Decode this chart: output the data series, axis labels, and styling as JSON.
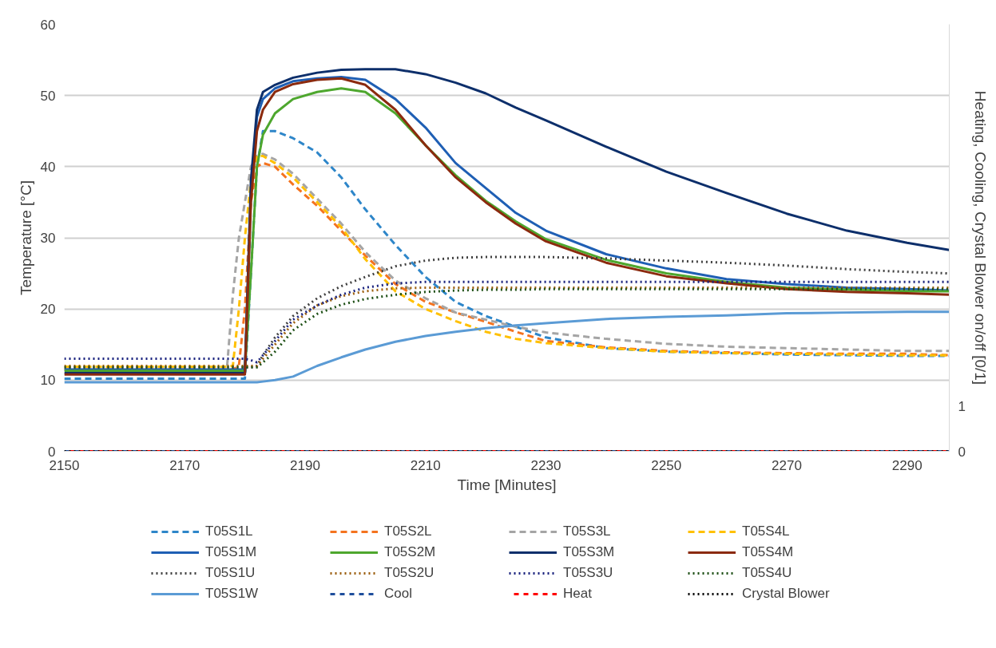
{
  "chart_data": {
    "type": "line",
    "xlabel": "Time [Minutes]",
    "ylabel": "Temperature [°C]",
    "y2label": "Heating, Cooling, Crystal Blower on/off [0/1]",
    "xlim": [
      2150,
      2297
    ],
    "xticks": [
      2150,
      2170,
      2190,
      2210,
      2230,
      2250,
      2270,
      2290
    ],
    "ylim": [
      0,
      60
    ],
    "yticks": [
      0,
      10,
      20,
      30,
      40,
      50,
      60
    ],
    "y2lim": [
      0,
      9.55
    ],
    "y2ticks": [
      0,
      1
    ],
    "grid": "y",
    "legend": "bottom",
    "x": [
      2150,
      2180,
      2181,
      2182,
      2183,
      2185,
      2188,
      2192,
      2196,
      2200,
      2205,
      2210,
      2215,
      2220,
      2225,
      2230,
      2240,
      2250,
      2260,
      2270,
      2280,
      2290,
      2297
    ],
    "series": [
      {
        "name": "T05S1L",
        "color": "#2e86c9",
        "line_style": "dashed",
        "x": [
          2150,
          2177,
          2178,
          2179,
          2180,
          2181,
          2182,
          2183,
          2185,
          2188,
          2192,
          2196,
          2200,
          2205,
          2210,
          2215,
          2220,
          2225,
          2230,
          2240,
          2250,
          2260,
          2270,
          2280,
          2290,
          2297
        ],
        "values": [
          10.2,
          10.2,
          10.2,
          10.2,
          10.2,
          25,
          40,
          45,
          45,
          44,
          42,
          38.5,
          34,
          29,
          24.5,
          21,
          19,
          17.5,
          16,
          14.5,
          14,
          13.8,
          13.6,
          13.5,
          13.4,
          13.4
        ]
      },
      {
        "name": "T05S2L",
        "color": "#f4731f",
        "line_style": "dashed",
        "x": [
          2150,
          2177,
          2178,
          2179,
          2180,
          2181,
          2182,
          2183,
          2185,
          2188,
          2192,
          2196,
          2200,
          2205,
          2210,
          2215,
          2220,
          2225,
          2230,
          2240,
          2250,
          2260,
          2270,
          2280,
          2290,
          2297
        ],
        "values": [
          11.5,
          11.5,
          11.5,
          12,
          20,
          35,
          40,
          40.5,
          40,
          37.5,
          34.5,
          31,
          27.5,
          23.5,
          21,
          19.5,
          18.2,
          16.8,
          15.5,
          14.6,
          14.1,
          13.9,
          13.8,
          13.7,
          13.7,
          13.5
        ]
      },
      {
        "name": "T05S3L",
        "color": "#a5a5a5",
        "line_style": "dashed",
        "x": [
          2150,
          2177,
          2178,
          2179,
          2180,
          2181,
          2182,
          2183,
          2185,
          2188,
          2192,
          2196,
          2200,
          2205,
          2210,
          2215,
          2220,
          2225,
          2230,
          2240,
          2250,
          2260,
          2270,
          2280,
          2290,
          2297
        ],
        "values": [
          11.5,
          11.5,
          22,
          30,
          35,
          40,
          41.5,
          41.8,
          41,
          39,
          35.5,
          32,
          28,
          24,
          21.5,
          19.5,
          18.5,
          17.5,
          16.7,
          15.8,
          15.1,
          14.7,
          14.5,
          14.3,
          14.1,
          14.1
        ]
      },
      {
        "name": "T05S4L",
        "color": "#ffc000",
        "line_style": "dashed",
        "x": [
          2150,
          2177,
          2178,
          2179,
          2180,
          2181,
          2182,
          2183,
          2185,
          2188,
          2192,
          2196,
          2200,
          2205,
          2210,
          2215,
          2220,
          2225,
          2230,
          2240,
          2250,
          2260,
          2270,
          2280,
          2290,
          2297
        ],
        "values": [
          11.9,
          11.9,
          12,
          20,
          30,
          38,
          41.5,
          41.5,
          40.5,
          38.5,
          35,
          31.5,
          27,
          22.5,
          20,
          18.3,
          16.8,
          15.8,
          15.2,
          14.5,
          14,
          13.8,
          13.7,
          13.6,
          13.5,
          13.5
        ]
      },
      {
        "name": "T05S1M",
        "color": "#1f5fb4",
        "line_style": "solid",
        "values": [
          11.5,
          11.5,
          36,
          47,
          49.5,
          51,
          52,
          52.4,
          52.6,
          52.2,
          49.5,
          45.5,
          40.5,
          37,
          33.5,
          31,
          27.7,
          25.7,
          24.2,
          23.5,
          23,
          22.8,
          22.6
        ]
      },
      {
        "name": "T05S2M",
        "color": "#4ea72e",
        "line_style": "solid",
        "values": [
          11.3,
          11.3,
          25,
          40,
          44.5,
          47.5,
          49.5,
          50.5,
          51,
          50.5,
          47.5,
          43,
          38.8,
          35.2,
          32.3,
          29.8,
          26.9,
          25,
          23.8,
          23,
          22.7,
          22.5,
          22.5
        ]
      },
      {
        "name": "T05S3M",
        "color": "#0d2f6b",
        "line_style": "solid",
        "values": [
          11,
          11,
          38,
          48,
          50.5,
          51.5,
          52.5,
          53.2,
          53.6,
          53.7,
          53.7,
          53,
          51.8,
          50.3,
          48.3,
          46.5,
          42.8,
          39.3,
          36.3,
          33.4,
          31,
          29.3,
          28.3
        ]
      },
      {
        "name": "T05S4M",
        "color": "#8b2a0e",
        "line_style": "solid",
        "values": [
          10.8,
          10.8,
          35,
          45,
          48,
          50.5,
          51.6,
          52.2,
          52.4,
          51.5,
          48,
          43,
          38.5,
          35,
          32,
          29.5,
          26.5,
          24.6,
          23.6,
          22.8,
          22.4,
          22.2,
          22
        ]
      },
      {
        "name": "T05S1U",
        "color": "#404040",
        "line_style": "dotted",
        "values": [
          11.8,
          11.8,
          11.8,
          12,
          13.5,
          16,
          19,
          21.5,
          23.2,
          24.5,
          26,
          26.8,
          27.2,
          27.3,
          27.3,
          27.3,
          27.1,
          26.8,
          26.5,
          26.1,
          25.6,
          25.2,
          25
        ]
      },
      {
        "name": "T05S2U",
        "color": "#9c5f0e",
        "line_style": "dotted",
        "values": [
          12,
          12,
          12,
          12,
          13,
          15,
          18,
          20.5,
          21.8,
          22.5,
          22.9,
          23,
          23,
          23,
          23,
          23,
          23,
          23,
          23,
          23,
          23,
          23,
          23
        ]
      },
      {
        "name": "T05S3U",
        "color": "#1a237e",
        "line_style": "dotted",
        "values": [
          13,
          13,
          12.8,
          12.5,
          13.5,
          15.5,
          18.5,
          20.5,
          22,
          23,
          23.6,
          23.8,
          23.8,
          23.8,
          23.8,
          23.8,
          23.8,
          23.8,
          23.8,
          23.8,
          23.8,
          23.8,
          23.8
        ]
      },
      {
        "name": "T05S4U",
        "color": "#1e5016",
        "line_style": "dotted",
        "values": [
          11.8,
          11.8,
          11.8,
          11.8,
          12.5,
          14,
          17,
          19.3,
          20.6,
          21.4,
          22,
          22.4,
          22.6,
          22.7,
          22.7,
          22.8,
          22.8,
          22.8,
          22.8,
          22.8,
          22.8,
          22.8,
          22.8
        ]
      },
      {
        "name": "T05S1W",
        "color": "#5b9bd5",
        "line_style": "solid",
        "values": [
          9.7,
          9.7,
          9.7,
          9.7,
          9.8,
          10,
          10.5,
          12,
          13.2,
          14.3,
          15.4,
          16.2,
          16.8,
          17.3,
          17.7,
          18,
          18.6,
          18.9,
          19.1,
          19.4,
          19.5,
          19.6,
          19.6
        ]
      },
      {
        "name": "Cool",
        "color": "#1f4e9c",
        "line_style": "dashed",
        "axis": "y2",
        "x": [
          2150,
          2297
        ],
        "values": [
          0,
          0
        ]
      },
      {
        "name": "Heat",
        "color": "#ff0000",
        "line_style": "dashed",
        "axis": "y2",
        "x": [
          2150,
          2297
        ],
        "values": [
          0,
          0
        ]
      },
      {
        "name": "Crystal Blower",
        "color": "#000000",
        "line_style": "dotted",
        "axis": "y2",
        "x": [
          2150,
          2297
        ],
        "values": [
          0,
          0
        ]
      }
    ]
  }
}
